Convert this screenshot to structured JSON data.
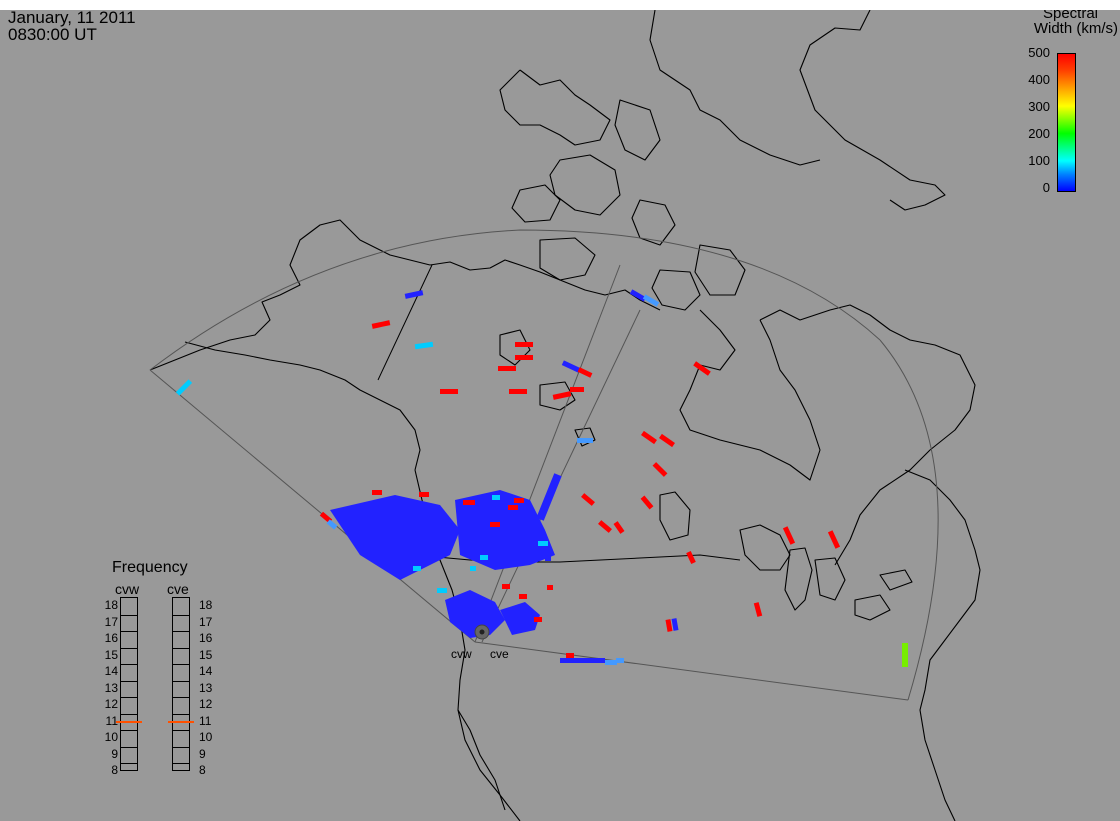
{
  "header": {
    "date": "January, 11 2011",
    "time": "0830:00 UT"
  },
  "colorbar": {
    "title_line1": "Spectral",
    "title_line2": "Width (km/s)",
    "ticks": [
      "500",
      "400",
      "300",
      "200",
      "100",
      "0"
    ],
    "colors": [
      "#0000ff",
      "#00ffff",
      "#00ff00",
      "#ffff00",
      "#ff0000"
    ]
  },
  "frequency": {
    "title": "Frequency",
    "stations": [
      {
        "name": "cvw",
        "value": 11
      },
      {
        "name": "cve",
        "value": 11
      }
    ],
    "scale": [
      "18",
      "17",
      "16",
      "15",
      "14",
      "13",
      "12",
      "11",
      "10",
      "9",
      "8"
    ],
    "marker_color": "#ff5000"
  },
  "stations": {
    "cvw": "cvw",
    "cve": "cve"
  },
  "chart_data": {
    "type": "heatmap",
    "quantity": "Spectral Width (km/s)",
    "range": [
      0,
      500
    ],
    "radars": [
      "cvw",
      "cve"
    ],
    "background": "#999999",
    "land_outline": "#000000"
  }
}
